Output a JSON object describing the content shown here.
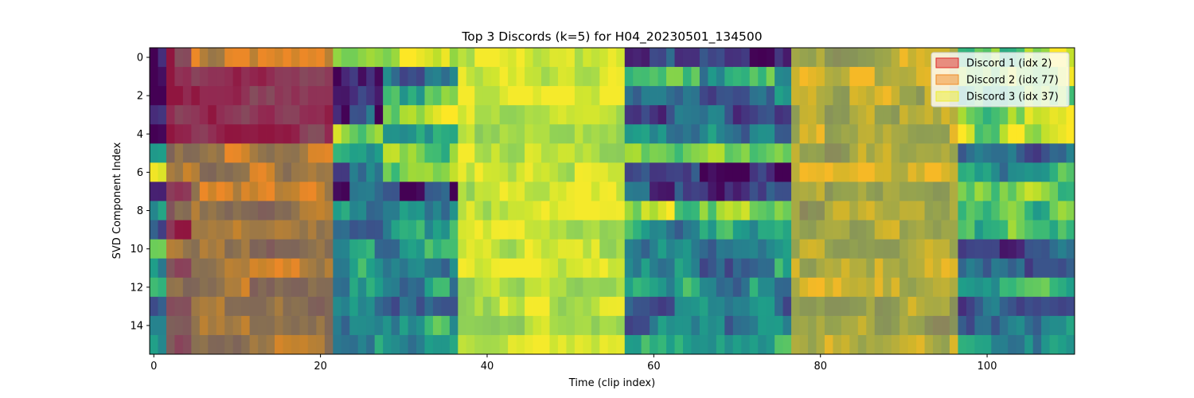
{
  "chart_data": {
    "type": "heatmap",
    "title": "Top 3 Discords (k=5) for H04_20230501_134500",
    "xlabel": "Time (clip index)",
    "ylabel": "SVD Component Index",
    "n_cols": 111,
    "n_rows": 16,
    "xlim": [
      -0.5,
      110.5
    ],
    "ylim": [
      -0.5,
      15.5
    ],
    "x_ticks": [
      0,
      20,
      40,
      60,
      80,
      100
    ],
    "y_ticks": [
      0,
      2,
      4,
      6,
      8,
      10,
      12,
      14
    ],
    "colormap": "viridis",
    "legend_position": "upper-right",
    "discords": [
      {
        "label": "Discord 1 (idx 2)",
        "start": 2,
        "length": 20,
        "color": "#dc2a2a"
      },
      {
        "label": "Discord 2 (idx 77)",
        "start": 77,
        "length": 20,
        "color": "#f08c28"
      },
      {
        "label": "Discord 3 (idx 37)",
        "start": 37,
        "length": 20,
        "color": "#eeee32"
      }
    ],
    "segments": [
      {
        "end": 5,
        "levels": [
          0.22,
          0.1,
          0.18,
          0.25,
          0.05,
          0.78,
          0.72,
          0.3,
          0.55,
          0.08,
          0.65,
          0.4,
          0.7,
          0.35,
          0.45,
          0.5
        ]
      },
      {
        "end": 22,
        "levels": [
          0.95,
          0.15,
          0.15,
          0.15,
          0.15,
          0.8,
          0.8,
          0.85,
          0.75,
          0.82,
          0.6,
          0.75,
          0.7,
          0.7,
          0.7,
          0.75
        ]
      },
      {
        "end": 28,
        "levels": [
          0.92,
          0.08,
          0.12,
          0.2,
          0.88,
          0.45,
          0.35,
          0.25,
          0.4,
          0.3,
          0.5,
          0.45,
          0.6,
          0.55,
          0.5,
          0.55
        ]
      },
      {
        "end": 37,
        "levels": [
          0.85,
          0.4,
          0.65,
          0.9,
          0.5,
          0.65,
          0.75,
          0.15,
          0.5,
          0.55,
          0.55,
          0.4,
          0.5,
          0.45,
          0.55,
          0.5
        ]
      },
      {
        "end": 57,
        "levels": [
          0.85,
          0.85,
          0.92,
          0.9,
          0.8,
          0.8,
          0.8,
          0.85,
          0.9,
          0.82,
          0.8,
          0.85,
          0.8,
          0.82,
          0.8,
          0.85
        ]
      },
      {
        "end": 77,
        "levels": [
          0.2,
          0.6,
          0.35,
          0.3,
          0.35,
          0.7,
          0.1,
          0.2,
          0.75,
          0.55,
          0.4,
          0.45,
          0.5,
          0.4,
          0.45,
          0.55
        ]
      },
      {
        "end": 97,
        "levels": [
          0.75,
          0.9,
          0.8,
          0.7,
          0.75,
          0.65,
          0.9,
          0.75,
          0.7,
          0.72,
          0.7,
          0.78,
          0.8,
          0.72,
          0.7,
          0.75
        ]
      },
      {
        "end": 111,
        "levels": [
          0.8,
          0.85,
          0.7,
          0.85,
          0.85,
          0.3,
          0.55,
          0.8,
          0.75,
          0.6,
          0.2,
          0.25,
          0.6,
          0.3,
          0.35,
          0.45
        ]
      }
    ]
  }
}
